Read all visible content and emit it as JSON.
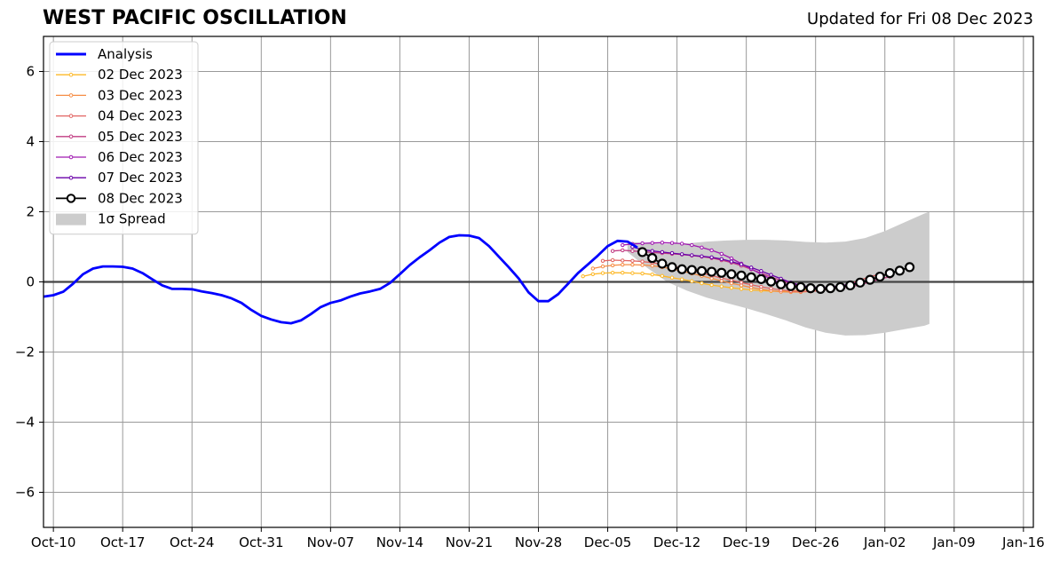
{
  "header": {
    "title": "WEST PACIFIC OSCILLATION",
    "updated": "Updated for Fri 08 Dec 2023"
  },
  "chart_data": {
    "type": "line",
    "title": "WEST PACIFIC OSCILLATION",
    "xlabel": "",
    "ylabel": "",
    "x_unit": "days since Oct-10 2023",
    "xlim": [
      -1,
      99
    ],
    "ylim": [
      -7,
      7
    ],
    "grid": true,
    "legend_position": "top-left",
    "x_ticks": [
      {
        "x": 0,
        "label": "Oct-10"
      },
      {
        "x": 7,
        "label": "Oct-17"
      },
      {
        "x": 14,
        "label": "Oct-24"
      },
      {
        "x": 21,
        "label": "Oct-31"
      },
      {
        "x": 28,
        "label": "Nov-07"
      },
      {
        "x": 35,
        "label": "Nov-14"
      },
      {
        "x": 42,
        "label": "Nov-21"
      },
      {
        "x": 49,
        "label": "Nov-28"
      },
      {
        "x": 56,
        "label": "Dec-05"
      },
      {
        "x": 63,
        "label": "Dec-12"
      },
      {
        "x": 70,
        "label": "Dec-19"
      },
      {
        "x": 77,
        "label": "Dec-26"
      },
      {
        "x": 84,
        "label": "Jan-02"
      },
      {
        "x": 91,
        "label": "Jan-09"
      },
      {
        "x": 98,
        "label": "Jan-16"
      }
    ],
    "y_ticks": [
      {
        "y": 6,
        "label": "6"
      },
      {
        "y": 4,
        "label": "4"
      },
      {
        "y": 2,
        "label": "2"
      },
      {
        "y": 0,
        "label": "0"
      },
      {
        "y": -2,
        "label": "−2"
      },
      {
        "y": -4,
        "label": "−4"
      },
      {
        "y": -6,
        "label": "−6"
      }
    ],
    "analysis": {
      "name": "Analysis",
      "color": "#0000ff",
      "x_start": -1,
      "values": [
        -0.42,
        -0.38,
        -0.28,
        -0.05,
        0.22,
        0.38,
        0.44,
        0.44,
        0.43,
        0.38,
        0.25,
        0.07,
        -0.1,
        -0.2,
        -0.2,
        -0.21,
        -0.27,
        -0.32,
        -0.38,
        -0.47,
        -0.6,
        -0.8,
        -0.97,
        -1.07,
        -1.15,
        -1.18,
        -1.1,
        -0.92,
        -0.72,
        -0.6,
        -0.53,
        -0.42,
        -0.33,
        -0.27,
        -0.2,
        -0.03,
        0.22,
        0.48,
        0.7,
        0.9,
        1.12,
        1.28,
        1.33,
        1.32,
        1.25,
        1.02,
        0.72,
        0.42,
        0.1,
        -0.3,
        -0.55,
        -0.55,
        -0.35,
        -0.05,
        0.25,
        0.5,
        0.75,
        1.02,
        1.17,
        1.15,
        0.98
      ]
    },
    "spread": {
      "name": "1σ Spread",
      "color": "#cccccc",
      "x": [
        58,
        60,
        62,
        64,
        66,
        68,
        70,
        72,
        74,
        76,
        78,
        80,
        82,
        84,
        86,
        88,
        88.5
      ],
      "upper": [
        1.15,
        1.1,
        1.08,
        1.1,
        1.15,
        1.18,
        1.2,
        1.2,
        1.18,
        1.14,
        1.12,
        1.15,
        1.25,
        1.45,
        1.7,
        1.95,
        2.0
      ],
      "lower": [
        0.85,
        0.4,
        0.0,
        -0.25,
        -0.45,
        -0.6,
        -0.75,
        -0.92,
        -1.1,
        -1.3,
        -1.45,
        -1.53,
        -1.52,
        -1.45,
        -1.35,
        -1.25,
        -1.2
      ]
    },
    "series": [
      {
        "name": "02 Dec 2023",
        "color": "#fdb827",
        "x_start": 53.5,
        "values": [
          0.16,
          0.22,
          0.25,
          0.26,
          0.26,
          0.25,
          0.24,
          0.21,
          0.17,
          0.12,
          0.07,
          0.02,
          -0.04,
          -0.09,
          -0.13,
          -0.17,
          -0.2,
          -0.23,
          -0.25,
          -0.26,
          -0.27,
          -0.26,
          -0.24,
          -0.2
        ]
      },
      {
        "name": "03 Dec 2023",
        "color": "#f68d45",
        "x_start": 54.5,
        "values": [
          0.38,
          0.44,
          0.47,
          0.49,
          0.49,
          0.48,
          0.46,
          0.42,
          0.37,
          0.31,
          0.24,
          0.17,
          0.1,
          0.03,
          -0.04,
          -0.1,
          -0.16,
          -0.21,
          -0.25,
          -0.28,
          -0.29,
          -0.29,
          -0.27,
          -0.23,
          -0.17,
          -0.1
        ]
      },
      {
        "name": "04 Dec 2023",
        "color": "#e16462",
        "x_start": 55.5,
        "values": [
          0.6,
          0.62,
          0.61,
          0.6,
          0.58,
          0.55,
          0.5,
          0.45,
          0.39,
          0.32,
          0.25,
          0.18,
          0.11,
          0.05,
          -0.02,
          -0.08,
          -0.14,
          -0.19,
          -0.23,
          -0.26,
          -0.27,
          -0.27,
          -0.25,
          -0.2,
          -0.14,
          -0.05,
          0.05,
          0.15,
          0.22
        ]
      },
      {
        "name": "05 Dec 2023",
        "color": "#c13b82",
        "x_start": 56.5,
        "values": [
          0.88,
          0.9,
          0.88,
          0.86,
          0.84,
          0.82,
          0.8,
          0.78,
          0.75,
          0.72,
          0.68,
          0.62,
          0.55,
          0.46,
          0.36,
          0.25,
          0.14,
          0.04,
          -0.05,
          -0.12,
          -0.17,
          -0.2,
          -0.2,
          -0.18,
          -0.14,
          -0.08,
          0.0,
          0.08,
          0.15
        ]
      },
      {
        "name": "06 Dec 2023",
        "color": "#a01ab1",
        "x_start": 57.5,
        "values": [
          1.05,
          1.08,
          1.1,
          1.11,
          1.12,
          1.11,
          1.09,
          1.05,
          0.98,
          0.9,
          0.8,
          0.67,
          0.52,
          0.37,
          0.22,
          0.08,
          -0.03,
          -0.11,
          -0.16,
          -0.18,
          -0.18,
          -0.15,
          -0.11,
          -0.06,
          0.0,
          0.07
        ]
      },
      {
        "name": "07 Dec 2023",
        "color": "#6a00a8",
        "x_start": 58.5,
        "values": [
          1.0,
          0.92,
          0.88,
          0.85,
          0.82,
          0.79,
          0.76,
          0.73,
          0.7,
          0.65,
          0.58,
          0.5,
          0.41,
          0.31,
          0.2,
          0.09,
          -0.02,
          -0.1,
          -0.15,
          -0.17,
          -0.16,
          -0.13,
          -0.08
        ]
      },
      {
        "name": "08 Dec 2023",
        "color": "#000000",
        "x_start": 59.5,
        "values": [
          0.85,
          0.68,
          0.52,
          0.42,
          0.36,
          0.34,
          0.31,
          0.29,
          0.26,
          0.22,
          0.18,
          0.13,
          0.08,
          0.01,
          -0.07,
          -0.12,
          -0.15,
          -0.18,
          -0.2,
          -0.18,
          -0.15,
          -0.1,
          -0.02,
          0.06,
          0.15,
          0.25,
          0.32,
          0.42
        ]
      }
    ]
  }
}
